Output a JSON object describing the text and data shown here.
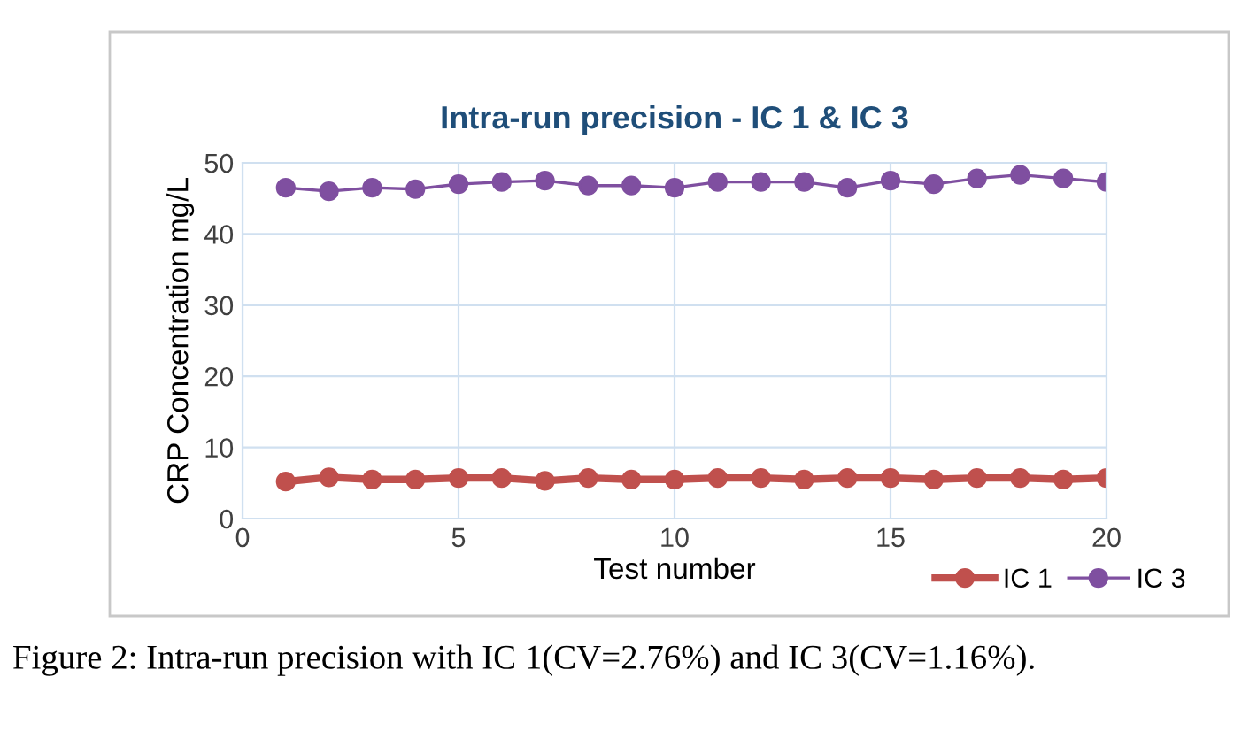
{
  "chart_data": {
    "type": "line",
    "title": "Intra-run precision - IC 1 & IC 3",
    "xlabel": "Test number",
    "ylabel": "CRP Concentration mg/L",
    "x": [
      1,
      2,
      3,
      4,
      5,
      6,
      7,
      8,
      9,
      10,
      11,
      12,
      13,
      14,
      15,
      16,
      17,
      18,
      19,
      20
    ],
    "series": [
      {
        "name": "IC 1",
        "color": "#c0504d",
        "values": [
          5.2,
          5.8,
          5.5,
          5.5,
          5.7,
          5.7,
          5.3,
          5.7,
          5.5,
          5.5,
          5.7,
          5.7,
          5.5,
          5.7,
          5.7,
          5.5,
          5.7,
          5.7,
          5.5,
          5.7
        ]
      },
      {
        "name": "IC 3",
        "color": "#7f4fa0",
        "values": [
          46.5,
          46.0,
          46.5,
          46.3,
          47.0,
          47.3,
          47.5,
          46.8,
          46.8,
          46.5,
          47.3,
          47.3,
          47.3,
          46.5,
          47.5,
          47.0,
          47.8,
          48.3,
          47.8,
          47.3
        ]
      }
    ],
    "xlim": [
      0,
      20
    ],
    "xticks": [
      0,
      5,
      10,
      15,
      20
    ],
    "ylim": [
      0,
      50
    ],
    "yticks": [
      0,
      10,
      20,
      30,
      40,
      50
    ],
    "grid": true,
    "legend": "bottom right",
    "marker": "circle",
    "line_style": "solid",
    "annotations": [
      "Figure 2: Intra-run precision with IC 1(CV=2.76%) and IC 3(CV=1.16%)."
    ]
  }
}
